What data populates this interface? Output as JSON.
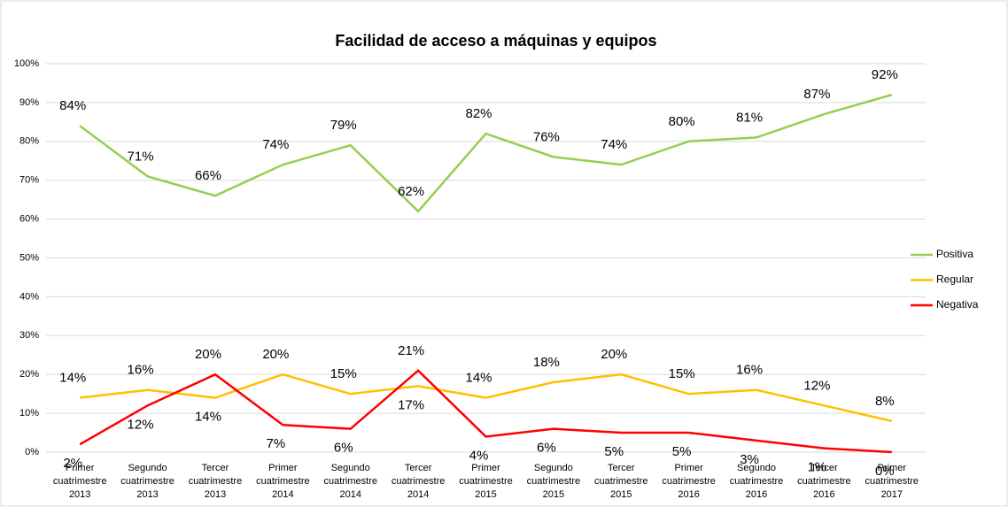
{
  "chart_data": {
    "type": "line",
    "title": "Facilidad de acceso a máquinas y equipos",
    "categories": [
      [
        "Primer",
        "cuatrimestre",
        "2013"
      ],
      [
        "Segundo",
        "cuatrimestre",
        "2013"
      ],
      [
        "Tercer",
        "cuatrimestre",
        "2013"
      ],
      [
        "Primer",
        "cuatrimestre",
        "2014"
      ],
      [
        "Segundo",
        "cuatrimestre",
        "2014"
      ],
      [
        "Tercer",
        "cuatrimestre",
        "2014"
      ],
      [
        "Primer",
        "cuatrimestre",
        "2015"
      ],
      [
        "Segundo",
        "cuatrimestre",
        "2015"
      ],
      [
        "Tercer",
        "cuatrimestre",
        "2015"
      ],
      [
        "Primer",
        "cuatrimestre",
        "2016"
      ],
      [
        "Segundo",
        "cuatrimestre",
        "2016"
      ],
      [
        "Tercer",
        "cuatrimestre",
        "2016"
      ],
      [
        "Primer",
        "cuatrimestre",
        "2017"
      ]
    ],
    "series": [
      {
        "name": "Positiva",
        "color": "#92d050",
        "values": [
          84,
          71,
          66,
          74,
          79,
          62,
          82,
          76,
          74,
          80,
          81,
          87,
          92
        ],
        "value_labels": [
          "84%",
          "71%",
          "66%",
          "74%",
          "79%",
          "62%",
          "82%",
          "76%",
          "74%",
          "80%",
          "81%",
          "87%",
          "92%"
        ]
      },
      {
        "name": "Regular",
        "color": "#ffc000",
        "values": [
          14,
          16,
          14,
          20,
          15,
          17,
          14,
          18,
          20,
          15,
          16,
          12,
          8
        ],
        "value_labels": [
          "14%",
          "16%",
          "14%",
          "20%",
          "15%",
          "17%",
          "14%",
          "18%",
          "20%",
          "15%",
          "16%",
          "12%",
          "8%"
        ]
      },
      {
        "name": "Negativa",
        "color": "#ff0000",
        "values": [
          2,
          12,
          20,
          7,
          6,
          21,
          4,
          6,
          5,
          5,
          3,
          1,
          0
        ],
        "value_labels": [
          "2%",
          "12%",
          "20%",
          "7%",
          "6%",
          "21%",
          "4%",
          "6%",
          "5%",
          "5%",
          "3%",
          "1%",
          "0%"
        ]
      }
    ],
    "ylim": [
      0,
      100
    ],
    "yticks": [
      {
        "value": 0,
        "label": "0%"
      },
      {
        "value": 10,
        "label": "10%"
      },
      {
        "value": 20,
        "label": "20%"
      },
      {
        "value": 30,
        "label": "30%"
      },
      {
        "value": 40,
        "label": "40%"
      },
      {
        "value": 50,
        "label": "50%"
      },
      {
        "value": 60,
        "label": "60%"
      },
      {
        "value": 70,
        "label": "70%"
      },
      {
        "value": 80,
        "label": "80%"
      },
      {
        "value": 90,
        "label": "90%"
      },
      {
        "value": 100,
        "label": "100%"
      }
    ],
    "grid": true,
    "legend": "right"
  }
}
